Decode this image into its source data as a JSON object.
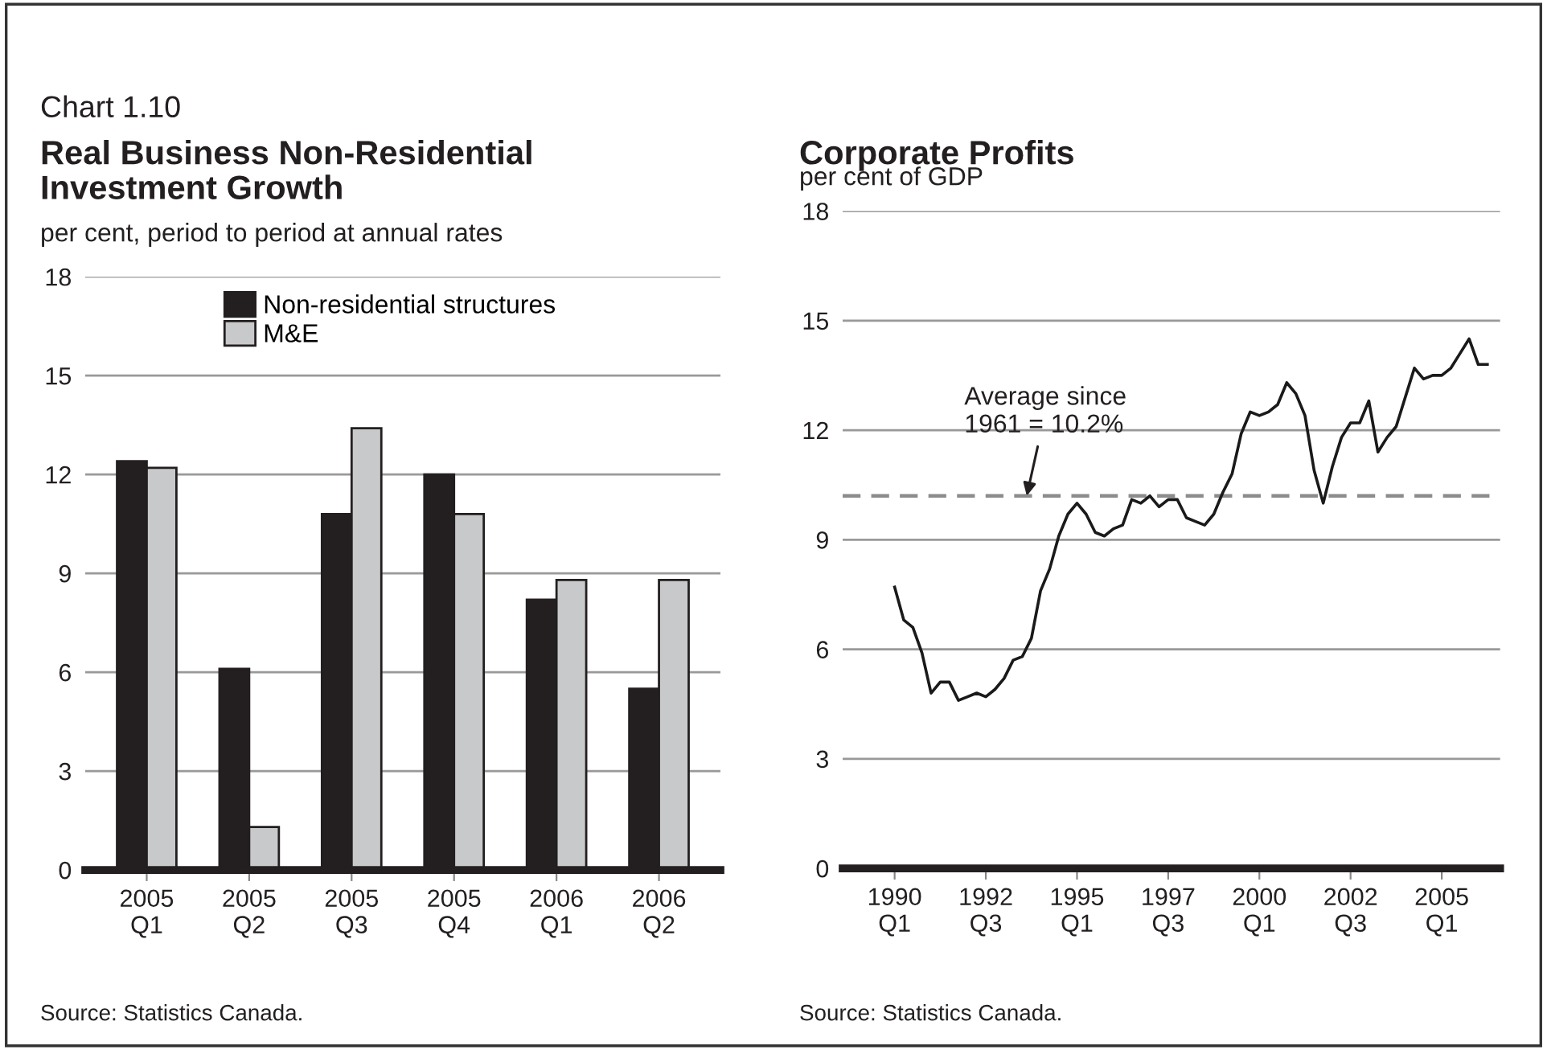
{
  "chart_data": [
    {
      "type": "bar",
      "title": "Real Business Non-Residential\nInvestment Growth",
      "subtitle": "per cent, period to period at annual rates",
      "annotations": [
        "Chart 1.10",
        "Source: Statistics Canada."
      ],
      "categories": [
        "2005\nQ1",
        "2005\nQ2",
        "2005\nQ3",
        "2005\nQ4",
        "2006\nQ1",
        "2006\nQ2"
      ],
      "series": [
        {
          "name": "Non-residential structures",
          "color": "#231f20",
          "values": [
            12.4,
            6.1,
            10.8,
            12.0,
            8.2,
            5.5
          ]
        },
        {
          "name": "M&E",
          "color": "#c8c9ca",
          "values": [
            12.2,
            1.3,
            13.4,
            10.8,
            8.8,
            8.8
          ]
        }
      ],
      "ylim": [
        0,
        18
      ],
      "yticks": [
        0,
        3,
        6,
        9,
        12,
        15,
        18
      ],
      "grid": "y",
      "legend": "top"
    },
    {
      "type": "line",
      "title": "Corporate Profits",
      "subtitle": "per cent of GDP",
      "annotations": [
        "Source: Statistics Canada."
      ],
      "categories": [
        "1990\nQ1",
        null,
        null,
        null,
        null,
        null,
        null,
        null,
        null,
        null,
        "1992\nQ3",
        null,
        null,
        null,
        null,
        null,
        null,
        null,
        null,
        null,
        "1995\nQ1",
        null,
        null,
        null,
        null,
        null,
        null,
        null,
        null,
        null,
        "1997\nQ3",
        null,
        null,
        null,
        null,
        null,
        null,
        null,
        null,
        null,
        "2000\nQ1",
        null,
        null,
        null,
        null,
        null,
        null,
        null,
        null,
        null,
        "2002\nQ3",
        null,
        null,
        null,
        null,
        null,
        null,
        null,
        null,
        null,
        "2005\nQ1",
        null,
        null,
        null,
        null,
        null
      ],
      "series": [
        {
          "color": "#1a1a1a",
          "values": [
            7.7,
            6.8,
            6.6,
            5.9,
            4.8,
            5.1,
            5.1,
            4.6,
            4.7,
            4.8,
            4.7,
            4.9,
            5.2,
            5.7,
            5.8,
            6.3,
            7.6,
            8.2,
            9.1,
            9.7,
            10.0,
            9.7,
            9.2,
            9.1,
            9.3,
            9.4,
            10.1,
            10.0,
            10.2,
            9.9,
            10.1,
            10.1,
            9.6,
            9.5,
            9.4,
            9.7,
            10.3,
            10.8,
            11.9,
            12.5,
            12.4,
            12.5,
            12.7,
            13.3,
            13.0,
            12.4,
            10.9,
            10.0,
            11.0,
            11.8,
            12.2,
            12.2,
            12.8,
            11.4,
            11.8,
            12.1,
            12.9,
            13.7,
            13.4,
            13.5,
            13.5,
            13.7,
            14.1,
            14.5,
            13.8,
            13.8
          ]
        }
      ],
      "ylim": [
        0,
        18
      ],
      "yticks": [
        0,
        3,
        6,
        9,
        12,
        15,
        18
      ],
      "grid": "y",
      "ref_lines": [
        {
          "axis": "y",
          "value": 10.2,
          "label": "Average since\n1961 = 10.2%",
          "color": "#8c8c8c",
          "line_style": "dashed"
        }
      ]
    }
  ]
}
